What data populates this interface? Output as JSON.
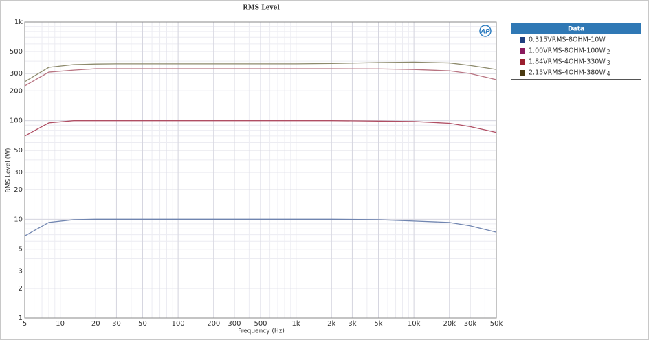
{
  "chart_data": {
    "type": "line",
    "title": "RMS Level",
    "x_label": "Frequency (Hz)",
    "y_label": "RMS Level (W)",
    "logo_text": "AP",
    "legend_title": "Data",
    "log_x": true,
    "log_y": true,
    "grid": true,
    "xlim": [
      5,
      50000
    ],
    "ylim": [
      1,
      1000
    ],
    "xticks": [
      5,
      10,
      20,
      30,
      50,
      100,
      200,
      300,
      500,
      {
        "value": 1000,
        "label": "1k"
      },
      {
        "value": 2000,
        "label": "2k"
      },
      {
        "value": 3000,
        "label": "3k"
      },
      {
        "value": 5000,
        "label": "5k"
      },
      {
        "value": 10000,
        "label": "10k"
      },
      {
        "value": 20000,
        "label": "20k"
      },
      {
        "value": 30000,
        "label": "30k"
      },
      {
        "value": 50000,
        "label": "50k"
      }
    ],
    "yticks": [
      1,
      2,
      3,
      5,
      10,
      20,
      30,
      50,
      100,
      200,
      300,
      500,
      {
        "value": 1000,
        "label": "1k"
      }
    ],
    "x": [
      5,
      8,
      13,
      20,
      30,
      50,
      100,
      200,
      500,
      1000,
      2000,
      5000,
      10000,
      20000,
      30000,
      50000
    ],
    "series": [
      {
        "name": "0.315VRMS-8OHM-10W",
        "suffix": "",
        "color": "#7085b0",
        "swatch": "#1f3f80",
        "values": [
          6.8,
          9.3,
          9.9,
          10,
          10,
          10,
          10,
          10,
          10,
          10,
          10,
          9.9,
          9.6,
          9.3,
          8.6,
          7.4
        ]
      },
      {
        "name": "1.00VRMS-8OHM-100W",
        "suffix": "2",
        "color": "#b04e63",
        "swatch": "#8b1a5e",
        "values": [
          70,
          95,
          100,
          100,
          100,
          100,
          100,
          100,
          100,
          100,
          100,
          99,
          98,
          94,
          87,
          76
        ]
      },
      {
        "name": "1.84VRMS-4OHM-330W",
        "suffix": "3",
        "color": "#b87482",
        "swatch": "#9b1f2f",
        "values": [
          225,
          310,
          325,
          336,
          336,
          336,
          336,
          336,
          336,
          336,
          336,
          335,
          330,
          320,
          300,
          260
        ]
      },
      {
        "name": "2.15VRMS-4OHM-380W",
        "suffix": "4",
        "color": "#8d8a6c",
        "swatch": "#4a3a10",
        "values": [
          248,
          347,
          370,
          375,
          377,
          377,
          377,
          377,
          377,
          377,
          380,
          388,
          392,
          385,
          363,
          330
        ]
      }
    ]
  }
}
